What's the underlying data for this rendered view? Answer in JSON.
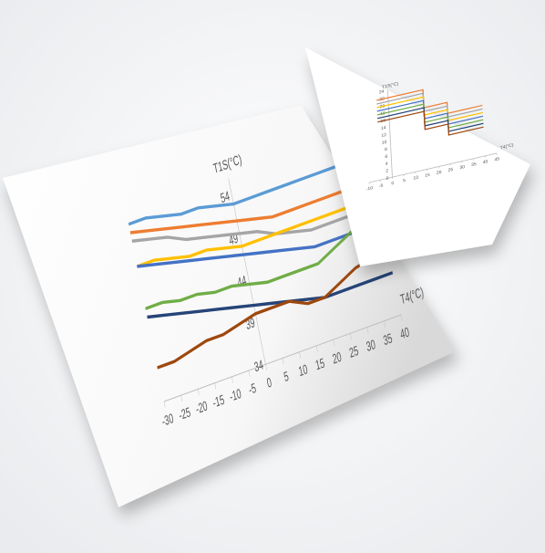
{
  "chart_data": [
    {
      "type": "line",
      "y_label": "T1S(°C)",
      "x_label": "T4(°C)",
      "x": [
        -30,
        -25,
        -20,
        -15,
        -10,
        -5,
        0,
        5,
        10,
        15,
        20,
        25,
        30,
        35,
        40
      ],
      "xlim": [
        -30,
        40
      ],
      "xticks": [
        -30,
        -25,
        -20,
        -15,
        -10,
        -5,
        0,
        5,
        10,
        15,
        20,
        25,
        30,
        35,
        40
      ],
      "ylim": [
        32,
        56
      ],
      "yticks": [
        34,
        39,
        44,
        49,
        54
      ],
      "series": [
        {
          "color": "#5b9bd5",
          "values": [
            55,
            55,
            54.5,
            54,
            54,
            53.5,
            53,
            53,
            53,
            53,
            53,
            53,
            53,
            53,
            53
          ]
        },
        {
          "color": "#ed7d31",
          "values": [
            54,
            53.5,
            53,
            52.5,
            52,
            51.5,
            51,
            50.5,
            50,
            50,
            50,
            50,
            50,
            50,
            50
          ]
        },
        {
          "color": "#a5a5a5",
          "values": [
            53,
            52.5,
            52,
            51,
            50.5,
            50,
            49.5,
            49,
            48,
            47.5,
            47,
            47,
            47,
            47,
            47
          ]
        },
        {
          "color": "#ffc000",
          "values": [
            50,
            50,
            49.5,
            49,
            49,
            48.5,
            48,
            48,
            48,
            48,
            48,
            48,
            48,
            48,
            48
          ]
        },
        {
          "color": "#4472c4",
          "values": [
            50,
            49.5,
            49,
            48.5,
            48,
            47.5,
            47,
            46.5,
            46,
            45.5,
            45,
            45,
            45,
            45,
            45
          ]
        },
        {
          "color": "#70ad47",
          "values": [
            45,
            45,
            44.5,
            44.5,
            44,
            44,
            43.5,
            43,
            43,
            43,
            43,
            44,
            45,
            46,
            47
          ]
        },
        {
          "color": "#264478",
          "values": [
            44,
            43.5,
            43,
            42.5,
            42,
            41.5,
            41,
            40.5,
            40,
            39.5,
            39,
            39,
            39,
            39,
            39
          ]
        },
        {
          "color": "#9e480e",
          "values": [
            38,
            38,
            38.5,
            39,
            39,
            39.5,
            40,
            40,
            40,
            39,
            39,
            40,
            41,
            41.5,
            42
          ]
        }
      ]
    },
    {
      "type": "line",
      "y_label": "T1S(°C)",
      "x_label": "T4(°C)",
      "x": [
        -5,
        15,
        15,
        25,
        25,
        40
      ],
      "xlim": [
        -10,
        45
      ],
      "xticks": [
        -10,
        -5,
        0,
        5,
        10,
        15,
        20,
        25,
        30,
        35,
        40,
        45
      ],
      "ylim": [
        0,
        24
      ],
      "yticks": [
        0,
        2,
        4,
        6,
        8,
        10,
        12,
        14,
        16,
        18,
        20,
        22,
        24
      ],
      "series": [
        {
          "color": "#ed7d31",
          "values": [
            22,
            22,
            17,
            17,
            14,
            14
          ]
        },
        {
          "color": "#a5a5a5",
          "values": [
            21,
            21,
            16,
            16,
            13,
            13
          ]
        },
        {
          "color": "#ffc000",
          "values": [
            20,
            20,
            15,
            15,
            12,
            12
          ]
        },
        {
          "color": "#4472c4",
          "values": [
            19,
            19,
            14,
            14,
            11,
            11
          ]
        },
        {
          "color": "#70ad47",
          "values": [
            18,
            18,
            13,
            13,
            10,
            10
          ]
        },
        {
          "color": "#264478",
          "values": [
            17,
            17,
            12,
            12,
            9,
            9
          ]
        },
        {
          "color": "#9e480e",
          "values": [
            16,
            16,
            11,
            11,
            8,
            8
          ]
        }
      ]
    }
  ]
}
